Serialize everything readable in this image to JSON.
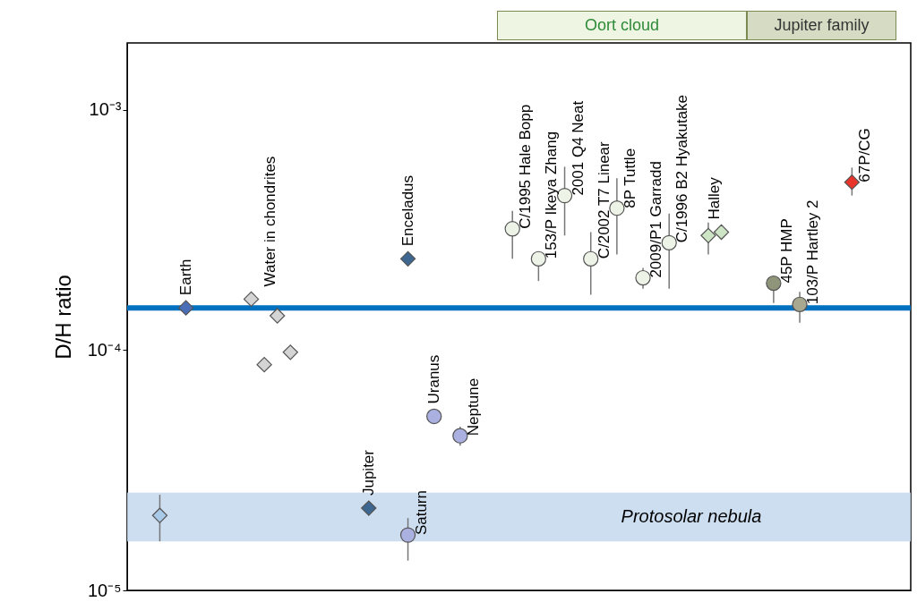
{
  "chart_data": {
    "type": "scatter",
    "ylabel": "D/H ratio",
    "log": true,
    "ylim": [
      1e-05,
      0.0019
    ],
    "yticks": [
      {
        "value": 1e-05,
        "label": "10⁻⁵"
      },
      {
        "value": 0.0001,
        "label": "10⁻⁴"
      },
      {
        "value": 0.001,
        "label": "10⁻³"
      }
    ],
    "tick_labels": "y",
    "categories": [
      null,
      null,
      null,
      null,
      null,
      null,
      null,
      null,
      null,
      null,
      null,
      null,
      null,
      null,
      null,
      null,
      null,
      null,
      null,
      null,
      null,
      null,
      null,
      null,
      null,
      null,
      null,
      null,
      null,
      null,
      null,
      null,
      null,
      null,
      null,
      null,
      null,
      null,
      null,
      null,
      null,
      null,
      null,
      null,
      null,
      null,
      null,
      null,
      null,
      null,
      null,
      null,
      null,
      null,
      null,
      null,
      null,
      null,
      null,
      null
    ],
    "series": [
      {
        "color": "#a9c9e9",
        "marker": "diamond",
        "values": [
          null,
          null,
          2.05e-05,
          null,
          null,
          null,
          null,
          null,
          null,
          null,
          null,
          null,
          null,
          null,
          null,
          null,
          null,
          null,
          null,
          null,
          null,
          null,
          null,
          null,
          null,
          null,
          null,
          null,
          null,
          null,
          null,
          null,
          null,
          null,
          null,
          null,
          null,
          null,
          null,
          null,
          null,
          null,
          null,
          null,
          null,
          null,
          null,
          null,
          null,
          null,
          null,
          null,
          null,
          null,
          null,
          null,
          null,
          null,
          null,
          null
        ],
        "errors": [
          null,
          null,
          [
            1.6e-05,
            2.5e-05
          ],
          null,
          null,
          null,
          null,
          null,
          null,
          null,
          null,
          null,
          null,
          null,
          null,
          null,
          null,
          null,
          null,
          null,
          null,
          null,
          null,
          null,
          null,
          null,
          null,
          null,
          null,
          null,
          null,
          null,
          null,
          null,
          null,
          null,
          null,
          null,
          null,
          null,
          null,
          null,
          null,
          null,
          null,
          null,
          null,
          null,
          null,
          null,
          null,
          null,
          null,
          null,
          null,
          null,
          null,
          null,
          null,
          null
        ]
      },
      {
        "name": "Earth",
        "color": "#4a6db8",
        "marker": "diamond",
        "values": [
          null,
          null,
          null,
          null,
          0.00015,
          null,
          null,
          null,
          null,
          null,
          null,
          null,
          null,
          null,
          null,
          null,
          null,
          null,
          null,
          null,
          null,
          null,
          null,
          null,
          null,
          null,
          null,
          null,
          null,
          null,
          null,
          null,
          null,
          null,
          null,
          null,
          null,
          null,
          null,
          null,
          null,
          null,
          null,
          null,
          null,
          null,
          null,
          null,
          null,
          null,
          null,
          null,
          null,
          null,
          null,
          null,
          null,
          null,
          null,
          null
        ]
      },
      {
        "name": "Water in chondrites",
        "color": "#d4d4d4",
        "marker": "diamond",
        "values": [
          null,
          null,
          null,
          null,
          null,
          null,
          null,
          null,
          null,
          0.000163,
          8.7e-05,
          0.000139,
          9.8e-05,
          null,
          null,
          null,
          null,
          null,
          null,
          null,
          null,
          null,
          null,
          null,
          null,
          null,
          null,
          null,
          null,
          null,
          null,
          null,
          null,
          null,
          null,
          null,
          null,
          null,
          null,
          null,
          null,
          null,
          null,
          null,
          null,
          null,
          null,
          null,
          null,
          null,
          null,
          null,
          null,
          null,
          null,
          null,
          null,
          null,
          null,
          null
        ]
      },
      {
        "name": "Jupiter",
        "color": "#3d6691",
        "marker": "diamond",
        "values": [
          null,
          null,
          null,
          null,
          null,
          null,
          null,
          null,
          null,
          null,
          null,
          null,
          null,
          null,
          null,
          null,
          null,
          null,
          2.2e-05,
          null,
          null,
          null,
          null,
          null,
          null,
          null,
          null,
          null,
          null,
          null,
          null,
          null,
          null,
          null,
          null,
          null,
          null,
          null,
          null,
          null,
          null,
          null,
          null,
          null,
          null,
          null,
          null,
          null,
          null,
          null,
          null,
          null,
          null,
          null,
          null,
          null,
          null,
          null,
          null,
          null
        ]
      },
      {
        "name": "Saturn",
        "color": "#aab0e0",
        "marker": "circle",
        "values": [
          null,
          null,
          null,
          null,
          null,
          null,
          null,
          null,
          null,
          null,
          null,
          null,
          null,
          null,
          null,
          null,
          null,
          null,
          null,
          null,
          null,
          1.7e-05,
          null,
          null,
          null,
          null,
          null,
          null,
          null,
          null,
          null,
          null,
          null,
          null,
          null,
          null,
          null,
          null,
          null,
          null,
          null,
          null,
          null,
          null,
          null,
          null,
          null,
          null,
          null,
          null,
          null,
          null,
          null,
          null,
          null,
          null,
          null,
          null,
          null,
          null
        ],
        "errors": [
          null,
          null,
          null,
          null,
          null,
          null,
          null,
          null,
          null,
          null,
          null,
          null,
          null,
          null,
          null,
          null,
          null,
          null,
          null,
          null,
          null,
          [
            1.33e-05,
            2e-05
          ],
          null,
          null,
          null,
          null,
          null,
          null,
          null,
          null,
          null,
          null,
          null,
          null,
          null,
          null,
          null,
          null,
          null,
          null,
          null,
          null,
          null,
          null,
          null,
          null,
          null,
          null,
          null,
          null,
          null,
          null,
          null,
          null,
          null,
          null,
          null,
          null,
          null,
          null
        ]
      },
      {
        "name": "Enceladus",
        "color": "#3d6691",
        "marker": "diamond",
        "values": [
          null,
          null,
          null,
          null,
          null,
          null,
          null,
          null,
          null,
          null,
          null,
          null,
          null,
          null,
          null,
          null,
          null,
          null,
          null,
          null,
          null,
          0.00024,
          null,
          null,
          null,
          null,
          null,
          null,
          null,
          null,
          null,
          null,
          null,
          null,
          null,
          null,
          null,
          null,
          null,
          null,
          null,
          null,
          null,
          null,
          null,
          null,
          null,
          null,
          null,
          null,
          null,
          null,
          null,
          null,
          null,
          null,
          null,
          null,
          null,
          null
        ]
      },
      {
        "name": "Uranus",
        "color": "#aab0e0",
        "marker": "circle",
        "values": [
          null,
          null,
          null,
          null,
          null,
          null,
          null,
          null,
          null,
          null,
          null,
          null,
          null,
          null,
          null,
          null,
          null,
          null,
          null,
          null,
          null,
          null,
          null,
          5.3e-05,
          null,
          null,
          null,
          null,
          null,
          null,
          null,
          null,
          null,
          null,
          null,
          null,
          null,
          null,
          null,
          null,
          null,
          null,
          null,
          null,
          null,
          null,
          null,
          null,
          null,
          null,
          null,
          null,
          null,
          null,
          null,
          null,
          null,
          null,
          null,
          null
        ]
      },
      {
        "name": "Neptune",
        "color": "#aab0e0",
        "marker": "circle",
        "values": [
          null,
          null,
          null,
          null,
          null,
          null,
          null,
          null,
          null,
          null,
          null,
          null,
          null,
          null,
          null,
          null,
          null,
          null,
          null,
          null,
          null,
          null,
          null,
          null,
          null,
          4.4e-05,
          null,
          null,
          null,
          null,
          null,
          null,
          null,
          null,
          null,
          null,
          null,
          null,
          null,
          null,
          null,
          null,
          null,
          null,
          null,
          null,
          null,
          null,
          null,
          null,
          null,
          null,
          null,
          null,
          null,
          null,
          null,
          null,
          null,
          null
        ],
        "errors": [
          null,
          null,
          null,
          null,
          null,
          null,
          null,
          null,
          null,
          null,
          null,
          null,
          null,
          null,
          null,
          null,
          null,
          null,
          null,
          null,
          null,
          null,
          null,
          null,
          null,
          [
            4e-05,
            4.8e-05
          ],
          null,
          null,
          null,
          null,
          null,
          null,
          null,
          null,
          null,
          null,
          null,
          null,
          null,
          null,
          null,
          null,
          null,
          null,
          null,
          null,
          null,
          null,
          null,
          null,
          null,
          null,
          null,
          null,
          null,
          null,
          null,
          null,
          null,
          null
        ]
      },
      {
        "name": "C/1995 Hale Bopp",
        "color": "#edf3e6",
        "marker": "circle",
        "values": [
          null,
          null,
          null,
          null,
          null,
          null,
          null,
          null,
          null,
          null,
          null,
          null,
          null,
          null,
          null,
          null,
          null,
          null,
          null,
          null,
          null,
          null,
          null,
          null,
          null,
          null,
          null,
          null,
          null,
          0.00032,
          null,
          null,
          null,
          null,
          null,
          null,
          null,
          null,
          null,
          null,
          null,
          null,
          null,
          null,
          null,
          null,
          null,
          null,
          null,
          null,
          null,
          null,
          null,
          null,
          null,
          null,
          null,
          null,
          null,
          null
        ],
        "errors": [
          null,
          null,
          null,
          null,
          null,
          null,
          null,
          null,
          null,
          null,
          null,
          null,
          null,
          null,
          null,
          null,
          null,
          null,
          null,
          null,
          null,
          null,
          null,
          null,
          null,
          null,
          null,
          null,
          null,
          [
            0.00024,
            0.00038
          ],
          null,
          null,
          null,
          null,
          null,
          null,
          null,
          null,
          null,
          null,
          null,
          null,
          null,
          null,
          null,
          null,
          null,
          null,
          null,
          null,
          null,
          null,
          null,
          null,
          null,
          null,
          null,
          null,
          null,
          null
        ]
      },
      {
        "name": "153/P Ikeya Zhang",
        "color": "#edf3e6",
        "marker": "circle",
        "values": [
          null,
          null,
          null,
          null,
          null,
          null,
          null,
          null,
          null,
          null,
          null,
          null,
          null,
          null,
          null,
          null,
          null,
          null,
          null,
          null,
          null,
          null,
          null,
          null,
          null,
          null,
          null,
          null,
          null,
          null,
          null,
          0.00024,
          null,
          null,
          null,
          null,
          null,
          null,
          null,
          null,
          null,
          null,
          null,
          null,
          null,
          null,
          null,
          null,
          null,
          null,
          null,
          null,
          null,
          null,
          null,
          null,
          null,
          null,
          null,
          null
        ],
        "errors": [
          null,
          null,
          null,
          null,
          null,
          null,
          null,
          null,
          null,
          null,
          null,
          null,
          null,
          null,
          null,
          null,
          null,
          null,
          null,
          null,
          null,
          null,
          null,
          null,
          null,
          null,
          null,
          null,
          null,
          null,
          null,
          [
            0.000194,
            0.00024
          ],
          null,
          null,
          null,
          null,
          null,
          null,
          null,
          null,
          null,
          null,
          null,
          null,
          null,
          null,
          null,
          null,
          null,
          null,
          null,
          null,
          null,
          null,
          null,
          null,
          null,
          null,
          null,
          null
        ]
      },
      {
        "name": "2001 Q4 Neat",
        "color": "#edf3e6",
        "marker": "circle",
        "values": [
          null,
          null,
          null,
          null,
          null,
          null,
          null,
          null,
          null,
          null,
          null,
          null,
          null,
          null,
          null,
          null,
          null,
          null,
          null,
          null,
          null,
          null,
          null,
          null,
          null,
          null,
          null,
          null,
          null,
          null,
          null,
          null,
          null,
          0.00044,
          null,
          null,
          null,
          null,
          null,
          null,
          null,
          null,
          null,
          null,
          null,
          null,
          null,
          null,
          null,
          null,
          null,
          null,
          null,
          null,
          null,
          null,
          null,
          null,
          null,
          null
        ],
        "errors": [
          null,
          null,
          null,
          null,
          null,
          null,
          null,
          null,
          null,
          null,
          null,
          null,
          null,
          null,
          null,
          null,
          null,
          null,
          null,
          null,
          null,
          null,
          null,
          null,
          null,
          null,
          null,
          null,
          null,
          null,
          null,
          null,
          null,
          [
            0.0003,
            0.00058
          ],
          null,
          null,
          null,
          null,
          null,
          null,
          null,
          null,
          null,
          null,
          null,
          null,
          null,
          null,
          null,
          null,
          null,
          null,
          null,
          null,
          null,
          null,
          null,
          null,
          null,
          null
        ]
      },
      {
        "name": "C/2002 T7 Linear",
        "color": "#edf3e6",
        "marker": "circle",
        "values": [
          null,
          null,
          null,
          null,
          null,
          null,
          null,
          null,
          null,
          null,
          null,
          null,
          null,
          null,
          null,
          null,
          null,
          null,
          null,
          null,
          null,
          null,
          null,
          null,
          null,
          null,
          null,
          null,
          null,
          null,
          null,
          null,
          null,
          null,
          null,
          0.00024,
          null,
          null,
          null,
          null,
          null,
          null,
          null,
          null,
          null,
          null,
          null,
          null,
          null,
          null,
          null,
          null,
          null,
          null,
          null,
          null,
          null,
          null,
          null,
          null
        ],
        "errors": [
          null,
          null,
          null,
          null,
          null,
          null,
          null,
          null,
          null,
          null,
          null,
          null,
          null,
          null,
          null,
          null,
          null,
          null,
          null,
          null,
          null,
          null,
          null,
          null,
          null,
          null,
          null,
          null,
          null,
          null,
          null,
          null,
          null,
          null,
          null,
          [
            0.00017,
            0.00031
          ],
          null,
          null,
          null,
          null,
          null,
          null,
          null,
          null,
          null,
          null,
          null,
          null,
          null,
          null,
          null,
          null,
          null,
          null,
          null,
          null,
          null,
          null,
          null,
          null
        ]
      },
      {
        "name": "8P Tuttle",
        "color": "#edf3e6",
        "marker": "circle",
        "values": [
          null,
          null,
          null,
          null,
          null,
          null,
          null,
          null,
          null,
          null,
          null,
          null,
          null,
          null,
          null,
          null,
          null,
          null,
          null,
          null,
          null,
          null,
          null,
          null,
          null,
          null,
          null,
          null,
          null,
          null,
          null,
          null,
          null,
          null,
          null,
          null,
          null,
          0.00039,
          null,
          null,
          null,
          null,
          null,
          null,
          null,
          null,
          null,
          null,
          null,
          null,
          null,
          null,
          null,
          null,
          null,
          null,
          null,
          null,
          null,
          null
        ],
        "errors": [
          null,
          null,
          null,
          null,
          null,
          null,
          null,
          null,
          null,
          null,
          null,
          null,
          null,
          null,
          null,
          null,
          null,
          null,
          null,
          null,
          null,
          null,
          null,
          null,
          null,
          null,
          null,
          null,
          null,
          null,
          null,
          null,
          null,
          null,
          null,
          null,
          null,
          [
            0.00025,
            0.00052
          ],
          null,
          null,
          null,
          null,
          null,
          null,
          null,
          null,
          null,
          null,
          null,
          null,
          null,
          null,
          null,
          null,
          null,
          null,
          null,
          null,
          null,
          null
        ]
      },
      {
        "name": "2009/P1 Garradd",
        "color": "#edf3e6",
        "marker": "circle",
        "values": [
          null,
          null,
          null,
          null,
          null,
          null,
          null,
          null,
          null,
          null,
          null,
          null,
          null,
          null,
          null,
          null,
          null,
          null,
          null,
          null,
          null,
          null,
          null,
          null,
          null,
          null,
          null,
          null,
          null,
          null,
          null,
          null,
          null,
          null,
          null,
          null,
          null,
          null,
          null,
          0.0002,
          null,
          null,
          null,
          null,
          null,
          null,
          null,
          null,
          null,
          null,
          null,
          null,
          null,
          null,
          null,
          null,
          null,
          null,
          null,
          null
        ],
        "errors": [
          null,
          null,
          null,
          null,
          null,
          null,
          null,
          null,
          null,
          null,
          null,
          null,
          null,
          null,
          null,
          null,
          null,
          null,
          null,
          null,
          null,
          null,
          null,
          null,
          null,
          null,
          null,
          null,
          null,
          null,
          null,
          null,
          null,
          null,
          null,
          null,
          null,
          null,
          null,
          [
            0.00018,
            0.00022
          ],
          null,
          null,
          null,
          null,
          null,
          null,
          null,
          null,
          null,
          null,
          null,
          null,
          null,
          null,
          null,
          null,
          null,
          null,
          null,
          null
        ]
      },
      {
        "name": "C/1996 B2 Hyakutake",
        "color": "#edf3e6",
        "marker": "circle",
        "values": [
          null,
          null,
          null,
          null,
          null,
          null,
          null,
          null,
          null,
          null,
          null,
          null,
          null,
          null,
          null,
          null,
          null,
          null,
          null,
          null,
          null,
          null,
          null,
          null,
          null,
          null,
          null,
          null,
          null,
          null,
          null,
          null,
          null,
          null,
          null,
          null,
          null,
          null,
          null,
          null,
          null,
          0.00028,
          null,
          null,
          null,
          null,
          null,
          null,
          null,
          null,
          null,
          null,
          null,
          null,
          null,
          null,
          null,
          null,
          null,
          null
        ],
        "errors": [
          null,
          null,
          null,
          null,
          null,
          null,
          null,
          null,
          null,
          null,
          null,
          null,
          null,
          null,
          null,
          null,
          null,
          null,
          null,
          null,
          null,
          null,
          null,
          null,
          null,
          null,
          null,
          null,
          null,
          null,
          null,
          null,
          null,
          null,
          null,
          null,
          null,
          null,
          null,
          null,
          null,
          [
            0.00018,
            0.00037
          ],
          null,
          null,
          null,
          null,
          null,
          null,
          null,
          null,
          null,
          null,
          null,
          null,
          null,
          null,
          null,
          null,
          null,
          null
        ]
      },
      {
        "name": "Halley",
        "color": "#cde5c5",
        "marker": "diamond",
        "values": [
          null,
          null,
          null,
          null,
          null,
          null,
          null,
          null,
          null,
          null,
          null,
          null,
          null,
          null,
          null,
          null,
          null,
          null,
          null,
          null,
          null,
          null,
          null,
          null,
          null,
          null,
          null,
          null,
          null,
          null,
          null,
          null,
          null,
          null,
          null,
          null,
          null,
          null,
          null,
          null,
          null,
          null,
          null,
          null,
          0.0003,
          0.00031,
          null,
          null,
          null,
          null,
          null,
          null,
          null,
          null,
          null,
          null,
          null,
          null,
          null,
          null
        ],
        "errors": [
          null,
          null,
          null,
          null,
          null,
          null,
          null,
          null,
          null,
          null,
          null,
          null,
          null,
          null,
          null,
          null,
          null,
          null,
          null,
          null,
          null,
          null,
          null,
          null,
          null,
          null,
          null,
          null,
          null,
          null,
          null,
          null,
          null,
          null,
          null,
          null,
          null,
          null,
          null,
          null,
          null,
          null,
          null,
          null,
          [
            0.00025,
            0.00034
          ],
          null,
          null,
          null,
          null,
          null,
          null,
          null,
          null,
          null,
          null,
          null,
          null,
          null,
          null,
          null
        ]
      },
      {
        "name": "45P HMP",
        "color": "#8e957a",
        "marker": "circle",
        "values": [
          null,
          null,
          null,
          null,
          null,
          null,
          null,
          null,
          null,
          null,
          null,
          null,
          null,
          null,
          null,
          null,
          null,
          null,
          null,
          null,
          null,
          null,
          null,
          null,
          null,
          null,
          null,
          null,
          null,
          null,
          null,
          null,
          null,
          null,
          null,
          null,
          null,
          null,
          null,
          null,
          null,
          null,
          null,
          null,
          null,
          null,
          null,
          null,
          null,
          0.00019,
          null,
          null,
          null,
          null,
          null,
          null,
          null,
          null,
          null,
          null
        ],
        "errors": [
          null,
          null,
          null,
          null,
          null,
          null,
          null,
          null,
          null,
          null,
          null,
          null,
          null,
          null,
          null,
          null,
          null,
          null,
          null,
          null,
          null,
          null,
          null,
          null,
          null,
          null,
          null,
          null,
          null,
          null,
          null,
          null,
          null,
          null,
          null,
          null,
          null,
          null,
          null,
          null,
          null,
          null,
          null,
          null,
          null,
          null,
          null,
          null,
          null,
          [
            0.000157,
            0.00019
          ],
          null,
          null,
          null,
          null,
          null,
          null,
          null,
          null,
          null,
          null
        ]
      },
      {
        "name": "103/P Hartley 2",
        "color": "#a8a890",
        "marker": "circle",
        "values": [
          null,
          null,
          null,
          null,
          null,
          null,
          null,
          null,
          null,
          null,
          null,
          null,
          null,
          null,
          null,
          null,
          null,
          null,
          null,
          null,
          null,
          null,
          null,
          null,
          null,
          null,
          null,
          null,
          null,
          null,
          null,
          null,
          null,
          null,
          null,
          null,
          null,
          null,
          null,
          null,
          null,
          null,
          null,
          null,
          null,
          null,
          null,
          null,
          null,
          null,
          null,
          0.000155,
          null,
          null,
          null,
          null,
          null,
          null,
          null,
          null
        ],
        "errors": [
          null,
          null,
          null,
          null,
          null,
          null,
          null,
          null,
          null,
          null,
          null,
          null,
          null,
          null,
          null,
          null,
          null,
          null,
          null,
          null,
          null,
          null,
          null,
          null,
          null,
          null,
          null,
          null,
          null,
          null,
          null,
          null,
          null,
          null,
          null,
          null,
          null,
          null,
          null,
          null,
          null,
          null,
          null,
          null,
          null,
          null,
          null,
          null,
          null,
          null,
          null,
          [
            0.00013,
            0.000175
          ],
          null,
          null,
          null,
          null,
          null,
          null,
          null,
          null
        ]
      },
      {
        "name": "67P/CG",
        "color": "#e8342a",
        "marker": "diamond",
        "values": [
          null,
          null,
          null,
          null,
          null,
          null,
          null,
          null,
          null,
          null,
          null,
          null,
          null,
          null,
          null,
          null,
          null,
          null,
          null,
          null,
          null,
          null,
          null,
          null,
          null,
          null,
          null,
          null,
          null,
          null,
          null,
          null,
          null,
          null,
          null,
          null,
          null,
          null,
          null,
          null,
          null,
          null,
          null,
          null,
          null,
          null,
          null,
          null,
          null,
          null,
          null,
          null,
          null,
          null,
          null,
          0.0005,
          null,
          null,
          null,
          null
        ],
        "errors": [
          null,
          null,
          null,
          null,
          null,
          null,
          null,
          null,
          null,
          null,
          null,
          null,
          null,
          null,
          null,
          null,
          null,
          null,
          null,
          null,
          null,
          null,
          null,
          null,
          null,
          null,
          null,
          null,
          null,
          null,
          null,
          null,
          null,
          null,
          null,
          null,
          null,
          null,
          null,
          null,
          null,
          null,
          null,
          null,
          null,
          null,
          null,
          null,
          null,
          null,
          null,
          null,
          null,
          null,
          null,
          [
            0.00044,
            0.000575
          ],
          null,
          null,
          null,
          null
        ]
      }
    ],
    "ref_lines": [
      {
        "axis": "y",
        "value": 0.00015,
        "color": "#0070c0"
      }
    ],
    "bands": [
      {
        "axis": "y",
        "from": 1.6e-05,
        "to": 2.55e-05,
        "label": "Protosolar nebula",
        "color": "#c5d8ef"
      }
    ],
    "annotations": [
      "Oort cloud",
      "Jupiter family"
    ]
  }
}
